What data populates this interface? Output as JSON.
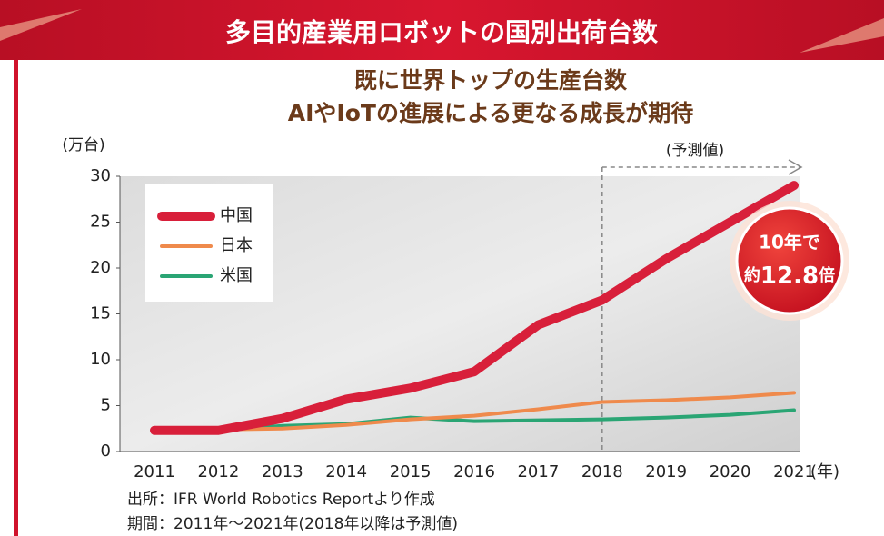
{
  "chart_data": {
    "type": "line",
    "title": "多目的産業用ロボットの国別出荷台数",
    "subtitle": [
      "既に世界トップの生産台数",
      "AIやIoTの進展による更なる成長が期待"
    ],
    "y_axis_label": "(万台)",
    "x_axis_label": "(年)",
    "categories": [
      "2011",
      "2012",
      "2013",
      "2014",
      "2015",
      "2016",
      "2017",
      "2018",
      "2019",
      "2020",
      "2021"
    ],
    "series": [
      {
        "name": "中国",
        "color": "#d81f3a",
        "values": [
          2.3,
          2.3,
          3.6,
          5.7,
          6.9,
          8.7,
          13.8,
          16.5,
          21,
          25,
          29
        ]
      },
      {
        "name": "日本",
        "color": "#ef8a4c",
        "values": [
          2.5,
          2.4,
          2.5,
          2.9,
          3.5,
          3.9,
          4.6,
          5.4,
          5.6,
          5.9,
          6.4
        ]
      },
      {
        "name": "米国",
        "color": "#2aa574",
        "values": [
          2.3,
          2.3,
          2.8,
          3.0,
          3.7,
          3.3,
          3.4,
          3.5,
          3.7,
          4.0,
          4.5
        ]
      }
    ],
    "ylim": [
      0,
      30
    ],
    "yticks": [
      0,
      5,
      10,
      15,
      20,
      25,
      30
    ],
    "forecast": {
      "label": "(予測値)",
      "from": "2018"
    },
    "callout": [
      "10年で",
      "約",
      "12.8",
      "倍"
    ],
    "source": [
      "出所：IFR World Robotics Reportより作成",
      "期間：2011年〜2021年(2018年以降は予測値)"
    ]
  }
}
